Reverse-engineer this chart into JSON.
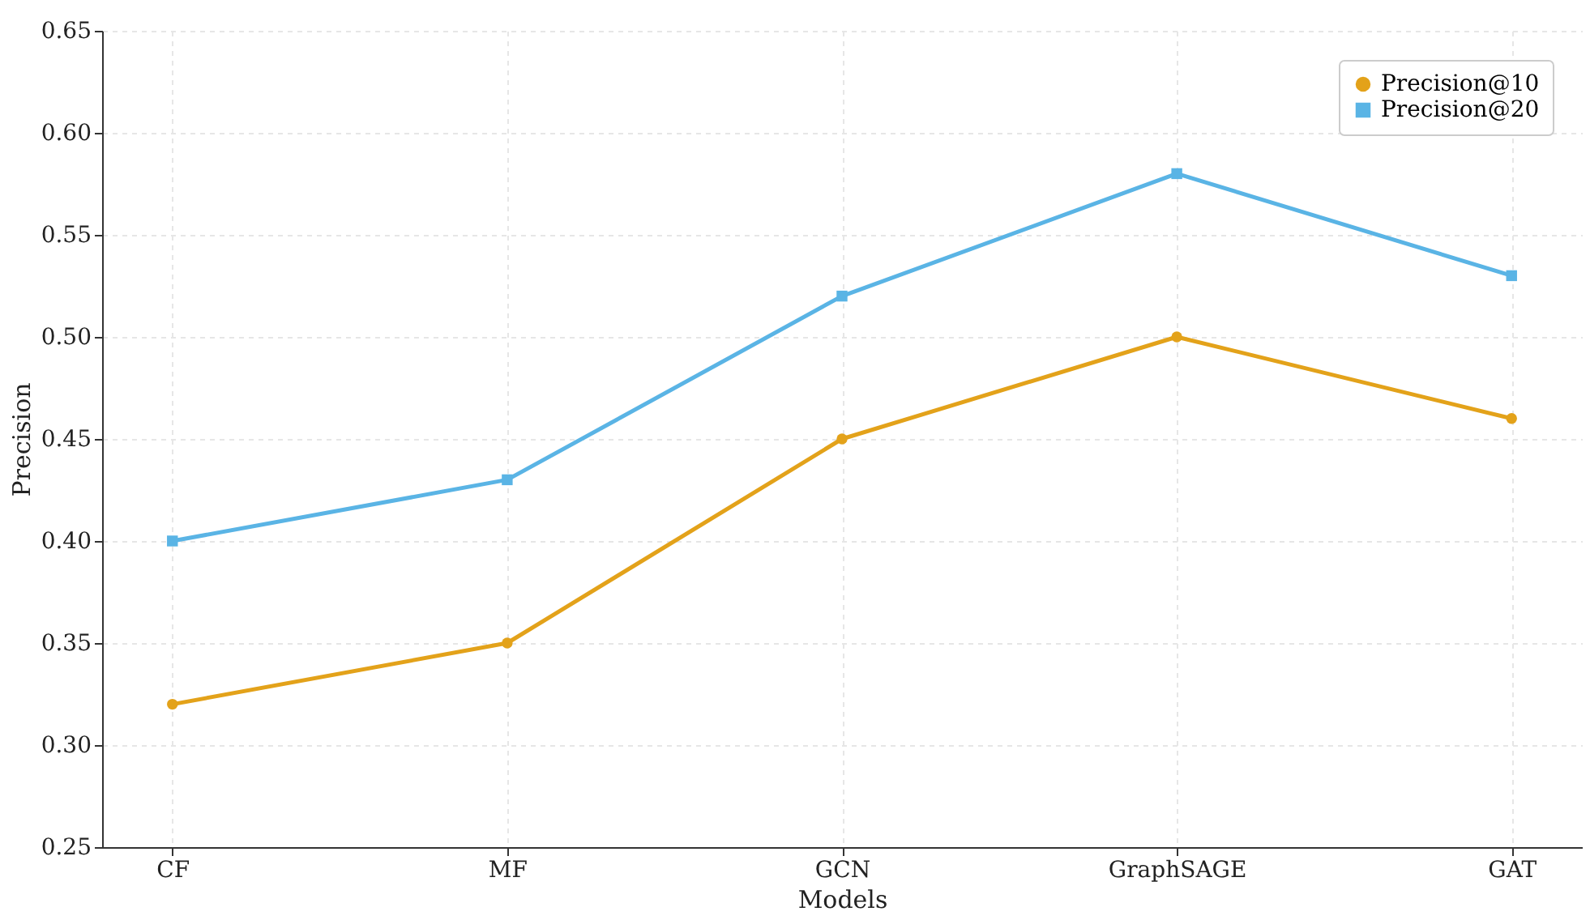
{
  "chart_data": {
    "type": "line",
    "xlabel": "Models",
    "ylabel": "Precision",
    "categories": [
      "CF",
      "MF",
      "GCN",
      "GraphSAGE",
      "GAT"
    ],
    "series": [
      {
        "name": "Precision@10",
        "color": "#e3a21a",
        "marker": "circle",
        "values": [
          0.32,
          0.35,
          0.45,
          0.5,
          0.46
        ]
      },
      {
        "name": "Precision@20",
        "color": "#5ab4e5",
        "marker": "square",
        "values": [
          0.4,
          0.43,
          0.52,
          0.58,
          0.53
        ]
      }
    ],
    "ylim": [
      0.25,
      0.65
    ],
    "yticks": [
      {
        "value": 0.25,
        "label": "0.25"
      },
      {
        "value": 0.3,
        "label": "0.30"
      },
      {
        "value": 0.35,
        "label": "0.35"
      },
      {
        "value": 0.4,
        "label": "0.40"
      },
      {
        "value": 0.45,
        "label": "0.45"
      },
      {
        "value": 0.5,
        "label": "0.50"
      },
      {
        "value": 0.55,
        "label": "0.55"
      },
      {
        "value": 0.6,
        "label": "0.60"
      },
      {
        "value": 0.65,
        "label": "0.65"
      }
    ],
    "grid": true,
    "legend": "top right",
    "line_style": "solid"
  }
}
